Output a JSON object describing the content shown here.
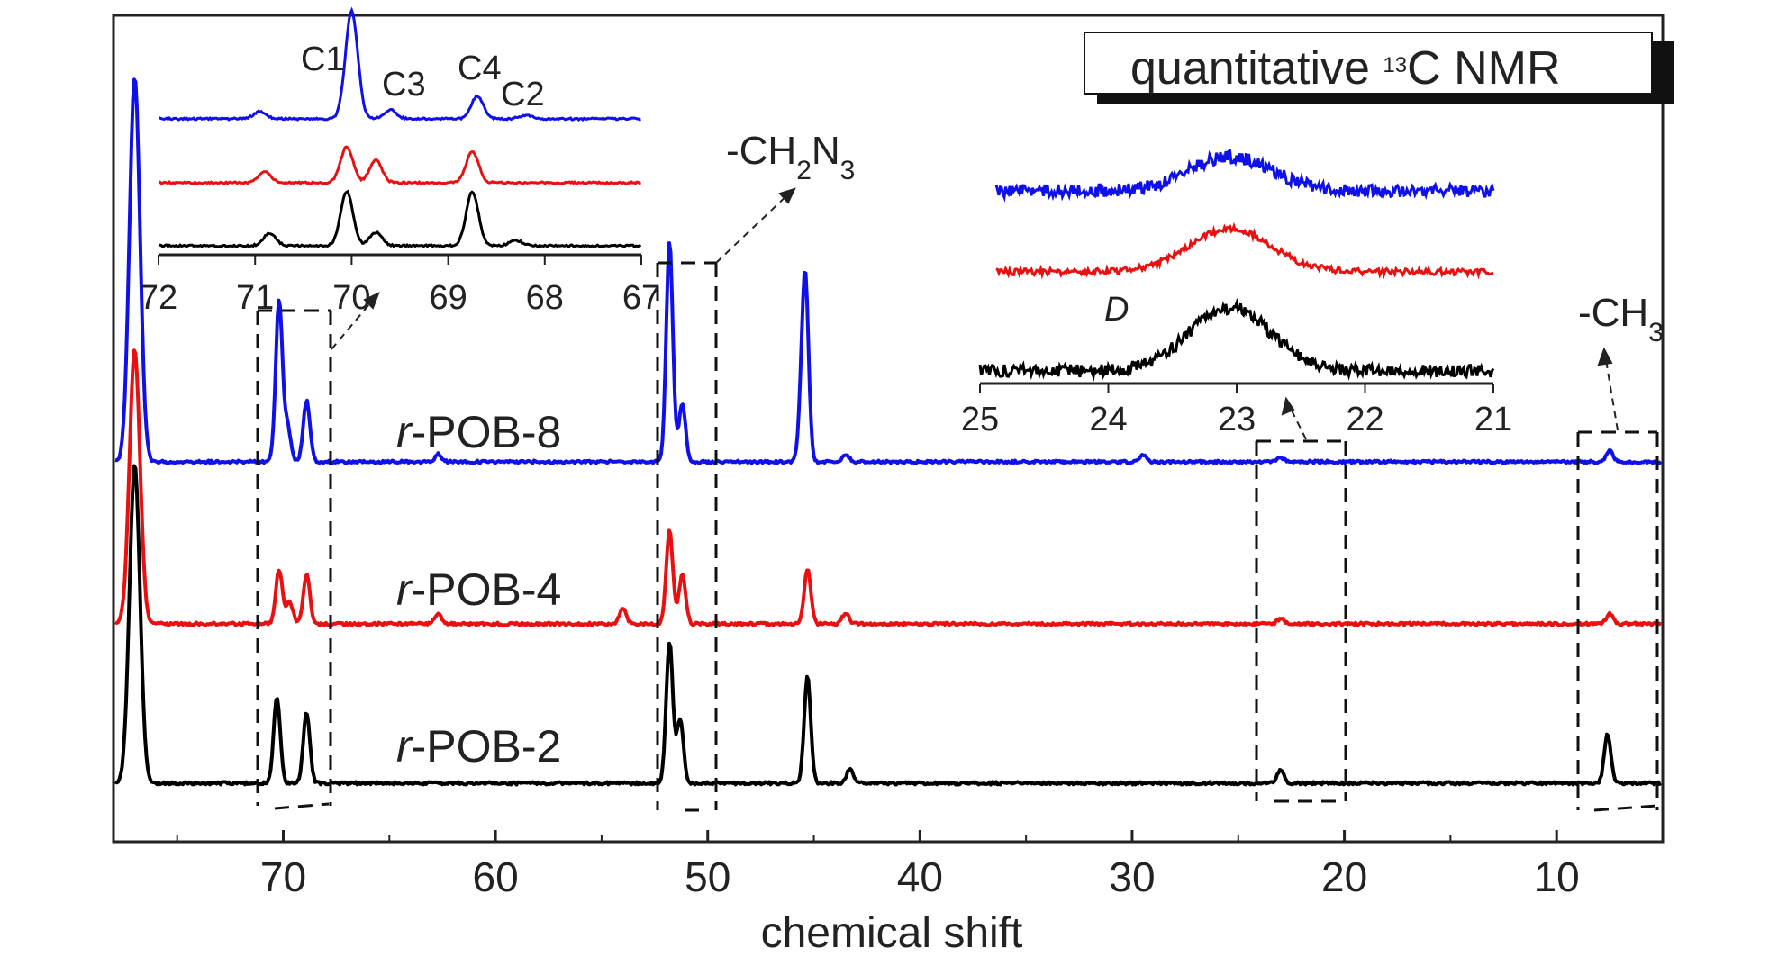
{
  "chart_data": {
    "type": "line",
    "title": "quantitative 13C NMR",
    "title_main": "quantitative ",
    "title_superscript": "13",
    "title_rest": "C NMR",
    "xlabel": "chemical shift",
    "ylabel": "",
    "xlim": [
      78,
      5
    ],
    "x_reversed": true,
    "x_ticks": [
      70,
      60,
      50,
      40,
      30,
      20,
      10
    ],
    "grid": false,
    "series": [
      {
        "name": "r-POB-8",
        "name_italic": "r",
        "name_rest": "-POB-8",
        "color": "#1010e8",
        "peaks": [
          {
            "x": 77,
            "height": 1.0
          },
          {
            "x": 70.2,
            "height": 0.42
          },
          {
            "x": 69.8,
            "height": 0.09
          },
          {
            "x": 68.9,
            "height": 0.16
          },
          {
            "x": 62.7,
            "height": 0.02
          },
          {
            "x": 51.8,
            "height": 0.57
          },
          {
            "x": 51.2,
            "height": 0.15
          },
          {
            "x": 45.4,
            "height": 0.46
          },
          {
            "x": 45.6,
            "height": 0.08
          },
          {
            "x": 43.5,
            "height": 0.02
          },
          {
            "x": 29.5,
            "height": 0.02
          },
          {
            "x": 23.0,
            "height": 0.01
          },
          {
            "x": 7.5,
            "height": 0.03
          }
        ]
      },
      {
        "name": "r-POB-4",
        "name_italic": "r",
        "name_rest": "-POB-4",
        "color": "#e81010",
        "peaks": [
          {
            "x": 77,
            "height": 0.5
          },
          {
            "x": 70.2,
            "height": 0.1
          },
          {
            "x": 69.7,
            "height": 0.04
          },
          {
            "x": 68.9,
            "height": 0.09
          },
          {
            "x": 62.7,
            "height": 0.02
          },
          {
            "x": 54.0,
            "height": 0.03
          },
          {
            "x": 51.8,
            "height": 0.17
          },
          {
            "x": 51.2,
            "height": 0.09
          },
          {
            "x": 45.3,
            "height": 0.1
          },
          {
            "x": 43.5,
            "height": 0.02
          },
          {
            "x": 23.0,
            "height": 0.01
          },
          {
            "x": 7.5,
            "height": 0.02
          }
        ]
      },
      {
        "name": "r-POB-2",
        "name_italic": "r",
        "name_rest": "-POB-2",
        "color": "#000000",
        "peaks": [
          {
            "x": 77,
            "height": 0.45
          },
          {
            "x": 70.3,
            "height": 0.12
          },
          {
            "x": 68.9,
            "height": 0.1
          },
          {
            "x": 51.8,
            "height": 0.2
          },
          {
            "x": 51.3,
            "height": 0.09
          },
          {
            "x": 45.3,
            "height": 0.15
          },
          {
            "x": 43.3,
            "height": 0.02
          },
          {
            "x": 23.0,
            "height": 0.02
          },
          {
            "x": 7.6,
            "height": 0.07
          }
        ]
      }
    ],
    "insets": [
      {
        "id": "inset-ether",
        "xlim": [
          72,
          67
        ],
        "x_ticks": [
          "72",
          "71",
          "70",
          "69",
          "68",
          "67"
        ],
        "peak_labels": [
          "C1",
          "C3",
          "C4",
          "C2"
        ]
      },
      {
        "id": "inset-methylene",
        "xlim": [
          25,
          21
        ],
        "x_ticks": [
          "25",
          "24",
          "23",
          "22",
          "21"
        ],
        "annotation": "D"
      }
    ],
    "annotations": {
      "ch2n3_main": "-CH",
      "ch2n3_sub1": "2",
      "ch2n3_mid": "N",
      "ch2n3_sub2": "3",
      "ch3_main": "-CH",
      "ch3_sub": "3"
    }
  }
}
